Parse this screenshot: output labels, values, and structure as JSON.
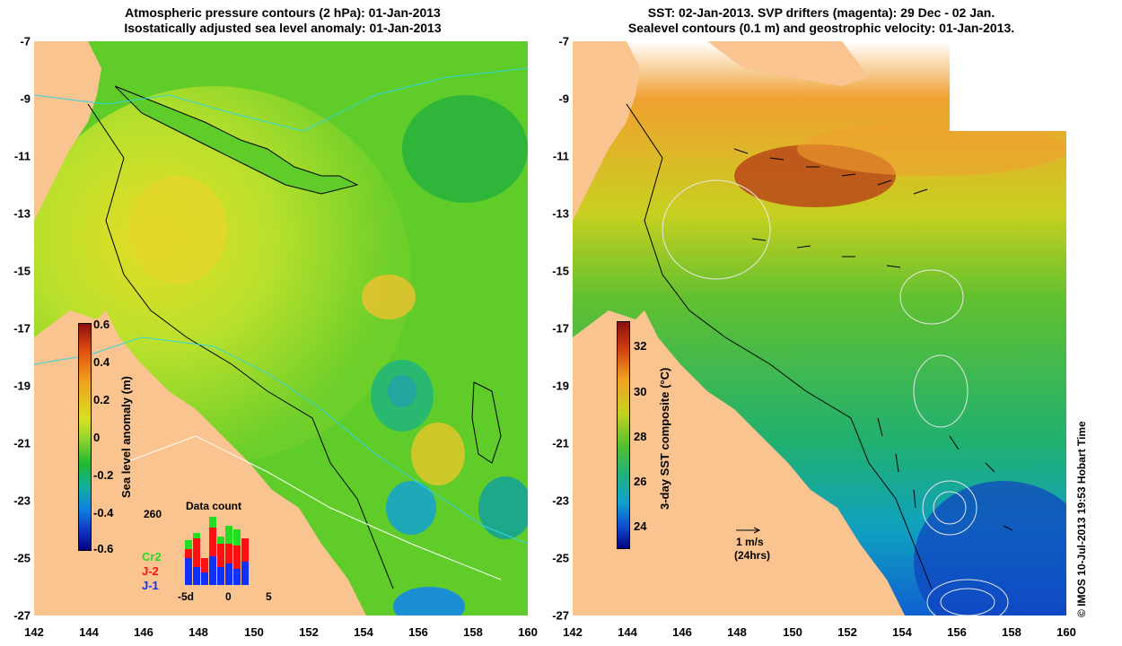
{
  "left_panel": {
    "title_line1": "Atmospheric pressure contours (2 hPa): 01-Jan-2013",
    "title_line2": "Isostatically adjusted sea level anomaly: 01-Jan-2013",
    "x_ticks": [
      "142",
      "144",
      "146",
      "148",
      "150",
      "152",
      "154",
      "156",
      "158",
      "160"
    ],
    "y_ticks": [
      "-7",
      "-9",
      "-11",
      "-13",
      "-15",
      "-17",
      "-19",
      "-21",
      "-23",
      "-25",
      "-27"
    ],
    "colorbar": {
      "label": "Sea level anomaly (m)",
      "ticks": [
        "0.6",
        "0.4",
        "0.2",
        "0",
        "-0.2",
        "-0.4",
        "-0.6"
      ],
      "range": [
        -0.6,
        0.6
      ]
    },
    "data_count": {
      "title": "Data count",
      "max_label": "260",
      "x_ticks": [
        "-5d",
        "0",
        "5"
      ],
      "legend": [
        {
          "label": "Cr2",
          "color": "#22dd22"
        },
        {
          "label": "J-2",
          "color": "#ff1010"
        },
        {
          "label": "J-1",
          "color": "#1030ff"
        }
      ]
    }
  },
  "right_panel": {
    "title_line1": "SST: 02-Jan-2013. SVP drifters (magenta): 29 Dec - 02 Jan.",
    "title_line2": "Sealevel contours (0.1 m) and geostrophic velocity: 01-Jan-2013.",
    "x_ticks": [
      "142",
      "144",
      "146",
      "148",
      "150",
      "152",
      "154",
      "156",
      "158",
      "160"
    ],
    "y_ticks": [
      "-7",
      "-9",
      "-11",
      "-13",
      "-15",
      "-17",
      "-19",
      "-21",
      "-23",
      "-25",
      "-27"
    ],
    "colorbar": {
      "label": "3-day SST composite (°C)",
      "ticks": [
        "32",
        "30",
        "28",
        "26",
        "24"
      ],
      "range": [
        23,
        33
      ]
    },
    "scale_arrow": {
      "label1": "1 m/s",
      "label2": "(24hrs)"
    }
  },
  "credit": "© IMOS 10-Jul-2013 19:53 Hobart Time",
  "colors": {
    "land": "#f9c48f",
    "ocean_mid": "#7ed321"
  }
}
